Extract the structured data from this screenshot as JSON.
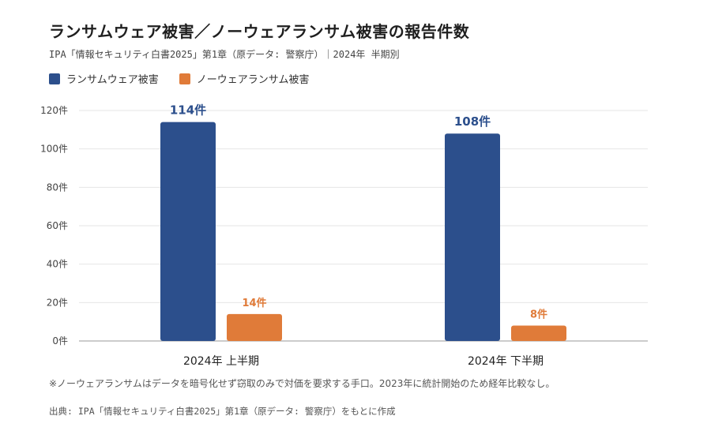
{
  "title": "ランサムウェア被害／ノーウェアランサム被害の報告件数",
  "subtitle": "IPA「情報セキュリティ白書2025」第1章（原データ: 警察庁）｜2024年 半期別",
  "note": "※ノーウェアランサムはデータを暗号化せず窃取のみで対価を要求する手口。2023年に統計開始のため経年比較なし。",
  "source": "出典: IPA「情報セキュリティ白書2025」第1章（原データ: 警察庁）をもとに作成",
  "colors": {
    "ransomware": "#2c4f8c",
    "noware": "#e07b39",
    "grid": "#e6e6e6",
    "axis": "#bbbbbb"
  },
  "chart_data": {
    "type": "bar",
    "categories": [
      "2024年 上半期",
      "2024年 下半期"
    ],
    "series": [
      {
        "name": "ランサムウェア被害",
        "values": [
          114,
          108
        ],
        "labels": [
          "114件",
          "108件"
        ]
      },
      {
        "name": "ノーウェアランサム被害",
        "values": [
          14,
          8
        ],
        "labels": [
          "14件",
          "8件"
        ]
      }
    ],
    "yticks": [
      "0件",
      "20件",
      "40件",
      "60件",
      "80件",
      "100件",
      "120件"
    ],
    "ylim": [
      0,
      120
    ],
    "grid": true,
    "legend": "top-left"
  }
}
